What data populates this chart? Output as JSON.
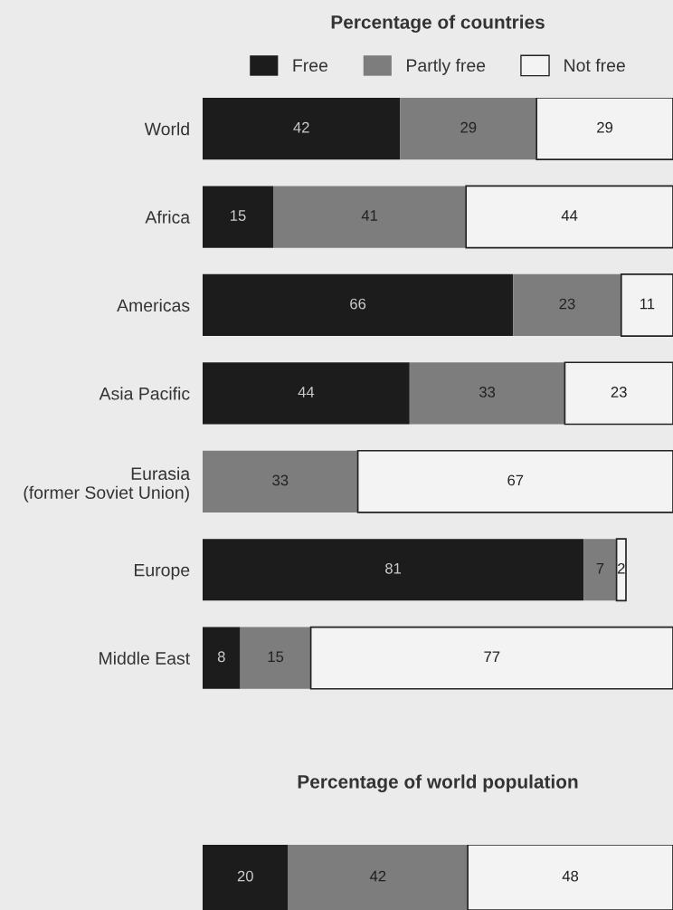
{
  "chart_data": [
    {
      "type": "bar",
      "orientation": "horizontal",
      "stacked": true,
      "title": "Percentage of countries",
      "legend": "top",
      "grid": false,
      "tick_labels": "y",
      "categories": [
        "World",
        "Africa",
        "Americas",
        "Asia Pacific",
        "Eurasia\n(former Soviet Union)",
        "Europe",
        "Middle East"
      ],
      "series": [
        {
          "name": "Free",
          "color": "#1c1c1c",
          "values": [
            42,
            15,
            66,
            44,
            0,
            81,
            8
          ],
          "value_labels": [
            "42",
            "15",
            "66",
            "44",
            null,
            "81",
            "8"
          ]
        },
        {
          "name": "Partly free",
          "color": "#7d7d7d",
          "values": [
            29,
            41,
            23,
            33,
            33,
            7,
            15
          ],
          "value_labels": [
            "29",
            "41",
            "23",
            "33",
            "33",
            "7",
            "15"
          ]
        },
        {
          "name": "Not free",
          "color": "#f3f3f3",
          "values": [
            29,
            44,
            11,
            23,
            67,
            2,
            77
          ],
          "value_labels": [
            "29",
            "44",
            "11",
            "23",
            "67",
            "2",
            "77"
          ]
        }
      ]
    },
    {
      "type": "bar",
      "orientation": "horizontal",
      "stacked": true,
      "title": "Percentage of world population",
      "legend": false,
      "grid": false,
      "tick_labels": false,
      "categories": [
        null
      ],
      "series": [
        {
          "color": "#1c1c1c",
          "values": [
            20
          ],
          "value_labels": [
            "20"
          ]
        },
        {
          "color": "#7d7d7d",
          "values": [
            42
          ],
          "value_labels": [
            "42"
          ]
        },
        {
          "color": "#f3f3f3",
          "values": [
            48
          ],
          "value_labels": [
            "48"
          ]
        }
      ]
    }
  ]
}
